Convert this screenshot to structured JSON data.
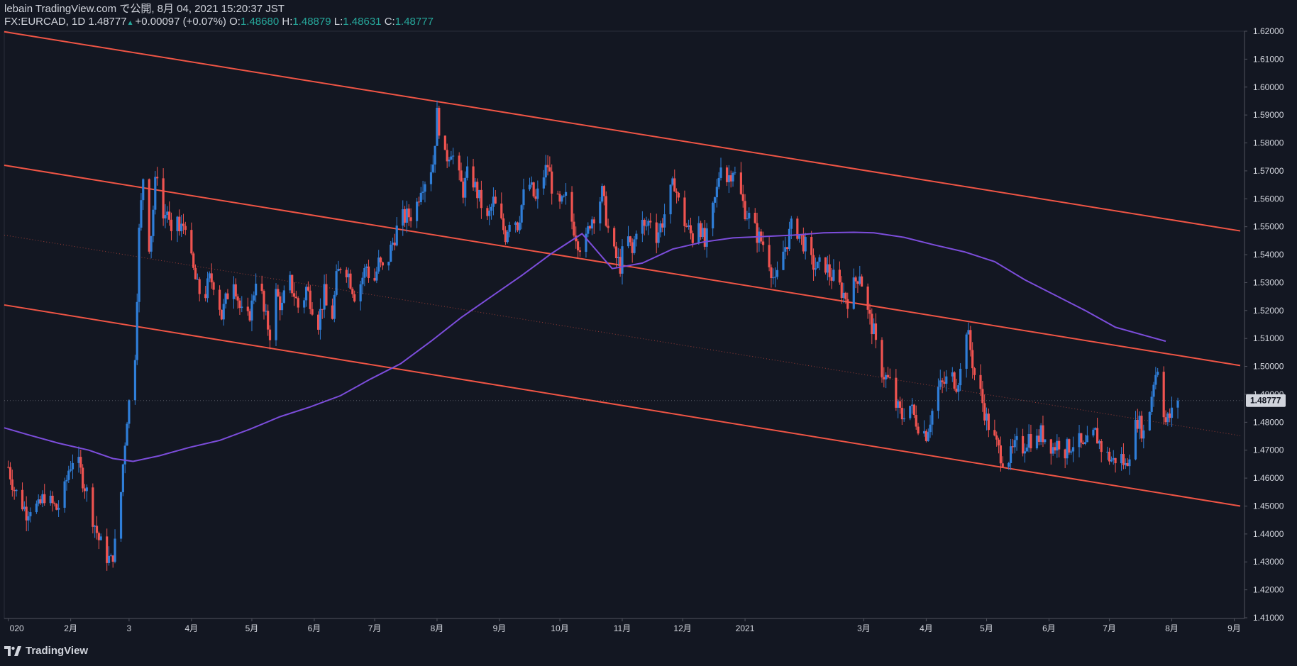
{
  "header": {
    "publish_line": "lebain TradingView.com で公開, 8月 04, 2021 15:20:37 JST",
    "symbol": "FX:EURCAD, 1D",
    "last": "1.48777",
    "change": "+0.00097 (+0.07%)",
    "o_label": "O:",
    "o_value": "1.48680",
    "h_label": "H:",
    "h_value": "1.48879",
    "l_label": "L:",
    "l_value": "1.48631",
    "c_label": "C:",
    "c_value": "1.48777"
  },
  "footer": {
    "brand": "TradingView"
  },
  "colors": {
    "background": "#131722",
    "up": "#2f7ed8",
    "down": "#ef5350",
    "channel": "#f05545",
    "ma": "#7c4ddb",
    "text": "#d1d4dc",
    "grid": "#2a2e39"
  },
  "chart_data": {
    "type": "candlestick",
    "ylim": [
      1.41,
      1.62
    ],
    "y_ticks": [
      1.41,
      1.42,
      1.43,
      1.44,
      1.45,
      1.46,
      1.47,
      1.48,
      1.49,
      1.5,
      1.51,
      1.52,
      1.53,
      1.54,
      1.55,
      1.56,
      1.57,
      1.58,
      1.59,
      1.6,
      1.61,
      1.62
    ],
    "y_tick_labels": [
      "1.41000",
      "1.42000",
      "1.43000",
      "1.44000",
      "1.45000",
      "1.46000",
      "1.47000",
      "1.48000",
      "1.49000",
      "1.50000",
      "1.51000",
      "1.52000",
      "1.53000",
      "1.54000",
      "1.55000",
      "1.56000",
      "1.57000",
      "1.58000",
      "1.59000",
      "1.60000",
      "1.61000",
      "1.62000"
    ],
    "x_ticks": [
      {
        "t": 0,
        "label": "020"
      },
      {
        "t": 31,
        "label": "2月"
      },
      {
        "t": 60,
        "label": "3"
      },
      {
        "t": 91,
        "label": "4月"
      },
      {
        "t": 121,
        "label": "5月"
      },
      {
        "t": 152,
        "label": "6月"
      },
      {
        "t": 182,
        "label": "7月"
      },
      {
        "t": 213,
        "label": "8月"
      },
      {
        "t": 244,
        "label": "9月"
      },
      {
        "t": 274,
        "label": "10月"
      },
      {
        "t": 305,
        "label": "11月"
      },
      {
        "t": 335,
        "label": "12月"
      },
      {
        "t": 366,
        "label": "2021"
      },
      {
        "t": 425,
        "label": "3月"
      },
      {
        "t": 456,
        "label": "4月"
      },
      {
        "t": 486,
        "label": "5月"
      },
      {
        "t": 517,
        "label": "6月"
      },
      {
        "t": 547,
        "label": "7月"
      },
      {
        "t": 578,
        "label": "8月"
      },
      {
        "t": 609,
        "label": "9月"
      }
    ],
    "x_range": [
      -2,
      612
    ],
    "price_label": "1.48777",
    "price_value": 1.48777,
    "last_t": 581,
    "channel_lines": [
      {
        "t0": -2,
        "v0": 1.6198,
        "t1": 612,
        "v1": 1.5485
      },
      {
        "t0": -2,
        "v0": 1.572,
        "t1": 612,
        "v1": 1.5003
      },
      {
        "t0": -2,
        "v0": 1.522,
        "t1": 612,
        "v1": 1.45
      }
    ],
    "mid_line": {
      "t0": -2,
      "v0": 1.547,
      "t1": 612,
      "v1": 1.4752
    },
    "ma_points": [
      [
        -2,
        1.478
      ],
      [
        10,
        1.4755
      ],
      [
        25,
        1.4725
      ],
      [
        40,
        1.47
      ],
      [
        52,
        1.467
      ],
      [
        62,
        1.466
      ],
      [
        75,
        1.468
      ],
      [
        90,
        1.471
      ],
      [
        105,
        1.4735
      ],
      [
        120,
        1.4775
      ],
      [
        135,
        1.482
      ],
      [
        150,
        1.4855
      ],
      [
        165,
        1.4895
      ],
      [
        180,
        1.4955
      ],
      [
        195,
        1.501
      ],
      [
        210,
        1.509
      ],
      [
        225,
        1.5175
      ],
      [
        240,
        1.525
      ],
      [
        255,
        1.5325
      ],
      [
        270,
        1.5405
      ],
      [
        285,
        1.5475
      ],
      [
        300,
        1.535
      ],
      [
        315,
        1.537
      ],
      [
        330,
        1.542
      ],
      [
        345,
        1.5445
      ],
      [
        360,
        1.546
      ],
      [
        375,
        1.5465
      ],
      [
        390,
        1.547
      ],
      [
        405,
        1.5478
      ],
      [
        420,
        1.548
      ],
      [
        430,
        1.5478
      ],
      [
        445,
        1.5462
      ],
      [
        460,
        1.5435
      ],
      [
        475,
        1.541
      ],
      [
        490,
        1.5375
      ],
      [
        505,
        1.531
      ],
      [
        520,
        1.5255
      ],
      [
        535,
        1.52
      ],
      [
        550,
        1.514
      ],
      [
        565,
        1.511
      ],
      [
        575,
        1.509
      ]
    ],
    "price_path": [
      [
        0,
        1.464
      ],
      [
        3,
        1.456
      ],
      [
        6,
        1.452
      ],
      [
        9,
        1.448
      ],
      [
        12,
        1.451
      ],
      [
        15,
        1.449
      ],
      [
        18,
        1.454
      ],
      [
        21,
        1.451
      ],
      [
        24,
        1.449
      ],
      [
        27,
        1.452
      ],
      [
        30,
        1.463
      ],
      [
        33,
        1.469
      ],
      [
        36,
        1.462
      ],
      [
        39,
        1.455
      ],
      [
        42,
        1.446
      ],
      [
        45,
        1.438
      ],
      [
        48,
        1.433
      ],
      [
        51,
        1.43
      ],
      [
        53,
        1.436
      ],
      [
        55,
        1.445
      ],
      [
        57,
        1.465
      ],
      [
        59,
        1.482
      ],
      [
        61,
        1.492
      ],
      [
        63,
        1.505
      ],
      [
        65,
        1.548
      ],
      [
        67,
        1.568
      ],
      [
        69,
        1.54
      ],
      [
        71,
        1.548
      ],
      [
        73,
        1.565
      ],
      [
        75,
        1.575
      ],
      [
        77,
        1.553
      ],
      [
        79,
        1.556
      ],
      [
        81,
        1.545
      ],
      [
        83,
        1.56
      ],
      [
        85,
        1.548
      ],
      [
        88,
        1.552
      ],
      [
        91,
        1.537
      ],
      [
        94,
        1.528
      ],
      [
        97,
        1.524
      ],
      [
        100,
        1.531
      ],
      [
        103,
        1.53
      ],
      [
        106,
        1.518
      ],
      [
        109,
        1.526
      ],
      [
        112,
        1.532
      ],
      [
        115,
        1.521
      ],
      [
        118,
        1.514
      ],
      [
        121,
        1.522
      ],
      [
        124,
        1.537
      ],
      [
        127,
        1.519
      ],
      [
        130,
        1.512
      ],
      [
        133,
        1.526
      ],
      [
        136,
        1.521
      ],
      [
        139,
        1.532
      ],
      [
        142,
        1.526
      ],
      [
        145,
        1.519
      ],
      [
        148,
        1.528
      ],
      [
        151,
        1.522
      ],
      [
        154,
        1.516
      ],
      [
        157,
        1.526
      ],
      [
        160,
        1.512
      ],
      [
        163,
        1.531
      ],
      [
        166,
        1.539
      ],
      [
        169,
        1.533
      ],
      [
        172,
        1.526
      ],
      [
        175,
        1.53
      ],
      [
        178,
        1.536
      ],
      [
        181,
        1.528
      ],
      [
        184,
        1.537
      ],
      [
        187,
        1.533
      ],
      [
        190,
        1.542
      ],
      [
        193,
        1.549
      ],
      [
        196,
        1.553
      ],
      [
        199,
        1.554
      ],
      [
        202,
        1.555
      ],
      [
        205,
        1.565
      ],
      [
        208,
        1.568
      ],
      [
        211,
        1.573
      ],
      [
        213,
        1.59
      ],
      [
        215,
        1.582
      ],
      [
        217,
        1.574
      ],
      [
        220,
        1.578
      ],
      [
        223,
        1.569
      ],
      [
        226,
        1.563
      ],
      [
        229,
        1.571
      ],
      [
        232,
        1.564
      ],
      [
        235,
        1.558
      ],
      [
        238,
        1.552
      ],
      [
        241,
        1.559
      ],
      [
        244,
        1.553
      ],
      [
        247,
        1.547
      ],
      [
        250,
        1.556
      ],
      [
        253,
        1.551
      ],
      [
        256,
        1.561
      ],
      [
        259,
        1.565
      ],
      [
        262,
        1.559
      ],
      [
        265,
        1.567
      ],
      [
        268,
        1.572
      ],
      [
        271,
        1.561
      ],
      [
        274,
        1.557
      ],
      [
        277,
        1.56
      ],
      [
        280,
        1.552
      ],
      [
        283,
        1.545
      ],
      [
        286,
        1.541
      ],
      [
        289,
        1.552
      ],
      [
        292,
        1.556
      ],
      [
        295,
        1.562
      ],
      [
        298,
        1.549
      ],
      [
        301,
        1.54
      ],
      [
        304,
        1.536
      ],
      [
        307,
        1.548
      ],
      [
        310,
        1.54
      ],
      [
        313,
        1.555
      ],
      [
        316,
        1.549
      ],
      [
        319,
        1.553
      ],
      [
        322,
        1.547
      ],
      [
        325,
        1.552
      ],
      [
        328,
        1.56
      ],
      [
        331,
        1.566
      ],
      [
        334,
        1.555
      ],
      [
        337,
        1.55
      ],
      [
        340,
        1.546
      ],
      [
        343,
        1.553
      ],
      [
        346,
        1.543
      ],
      [
        349,
        1.552
      ],
      [
        352,
        1.563
      ],
      [
        354,
        1.574
      ],
      [
        357,
        1.567
      ],
      [
        360,
        1.571
      ],
      [
        363,
        1.563
      ],
      [
        366,
        1.556
      ],
      [
        369,
        1.552
      ],
      [
        372,
        1.547
      ],
      [
        375,
        1.544
      ],
      [
        378,
        1.538
      ],
      [
        381,
        1.529
      ],
      [
        384,
        1.539
      ],
      [
        387,
        1.545
      ],
      [
        390,
        1.552
      ],
      [
        393,
        1.547
      ],
      [
        396,
        1.543
      ],
      [
        399,
        1.537
      ],
      [
        402,
        1.535
      ],
      [
        405,
        1.538
      ],
      [
        408,
        1.533
      ],
      [
        411,
        1.531
      ],
      [
        414,
        1.527
      ],
      [
        417,
        1.524
      ],
      [
        420,
        1.529
      ],
      [
        423,
        1.534
      ],
      [
        425,
        1.526
      ],
      [
        427,
        1.519
      ],
      [
        430,
        1.512
      ],
      [
        432,
        1.502
      ],
      [
        435,
        1.497
      ],
      [
        438,
        1.494
      ],
      [
        441,
        1.486
      ],
      [
        444,
        1.482
      ],
      [
        447,
        1.488
      ],
      [
        450,
        1.482
      ],
      [
        453,
        1.478
      ],
      [
        456,
        1.476
      ],
      [
        459,
        1.484
      ],
      [
        462,
        1.492
      ],
      [
        465,
        1.494
      ],
      [
        468,
        1.497
      ],
      [
        471,
        1.494
      ],
      [
        474,
        1.5
      ],
      [
        476,
        1.514
      ],
      [
        478,
        1.506
      ],
      [
        480,
        1.497
      ],
      [
        483,
        1.49
      ],
      [
        486,
        1.481
      ],
      [
        489,
        1.475
      ],
      [
        492,
        1.47
      ],
      [
        495,
        1.466
      ],
      [
        498,
        1.468
      ],
      [
        501,
        1.472
      ],
      [
        504,
        1.471
      ],
      [
        507,
        1.475
      ],
      [
        510,
        1.472
      ],
      [
        513,
        1.476
      ],
      [
        516,
        1.474
      ],
      [
        519,
        1.471
      ],
      [
        522,
        1.473
      ],
      [
        525,
        1.47
      ],
      [
        528,
        1.472
      ],
      [
        531,
        1.474
      ],
      [
        534,
        1.47
      ],
      [
        537,
        1.473
      ],
      [
        540,
        1.476
      ],
      [
        543,
        1.471
      ],
      [
        546,
        1.468
      ],
      [
        549,
        1.466
      ],
      [
        552,
        1.469
      ],
      [
        555,
        1.464
      ],
      [
        558,
        1.473
      ],
      [
        561,
        1.481
      ],
      [
        564,
        1.476
      ],
      [
        567,
        1.485
      ],
      [
        569,
        1.495
      ],
      [
        571,
        1.5
      ],
      [
        573,
        1.489
      ],
      [
        575,
        1.48
      ],
      [
        577,
        1.482
      ],
      [
        579,
        1.484
      ],
      [
        581,
        1.488
      ]
    ]
  }
}
